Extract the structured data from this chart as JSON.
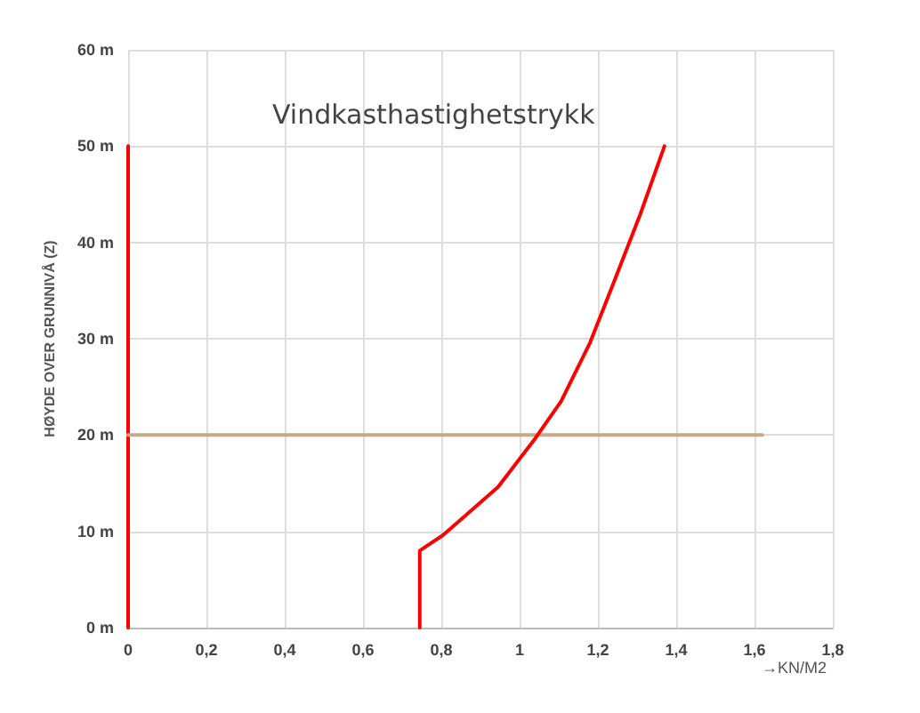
{
  "chart_data": {
    "type": "line",
    "title": "Vindkasthastighetstrykk",
    "xlabel": "→KN/M2",
    "ylabel": "HØYDE OVER GRUNNIVÅ (Z)",
    "series": [
      {
        "color": "#ff0000",
        "x": [
          0,
          0
        ],
        "values": [
          0,
          50
        ]
      },
      {
        "color": "#c8a88a",
        "x": [
          0,
          1.62
        ],
        "values": [
          20,
          20
        ]
      },
      {
        "color": "#ff0000",
        "x": [
          0.745,
          0.745,
          0.804,
          0.945,
          1.039,
          1.106,
          1.18,
          1.24,
          1.308,
          1.37
        ],
        "values": [
          0,
          8,
          9.6,
          14.6,
          19.6,
          23.5,
          29.6,
          35.8,
          42.9,
          50
        ]
      }
    ],
    "xlim": [
      0,
      1.8
    ],
    "xticks": [
      0,
      {
        "value": 0.2,
        "label": "0,2"
      },
      {
        "value": 0.4,
        "label": "0,4"
      },
      {
        "value": 0.6,
        "label": "0,6"
      },
      {
        "value": 0.8,
        "label": "0,8"
      },
      1,
      {
        "value": 1.2,
        "label": "1,2"
      },
      {
        "value": 1.4,
        "label": "1,4"
      },
      {
        "value": 1.6,
        "label": "1,6"
      },
      {
        "value": 1.8,
        "label": "1,8"
      }
    ],
    "ylim": [
      0,
      60
    ],
    "yticks": [
      {
        "value": 0,
        "label": "0 m"
      },
      {
        "value": 10,
        "label": "10 m"
      },
      {
        "value": 20,
        "label": "20 m"
      },
      {
        "value": 30,
        "label": "30 m"
      },
      {
        "value": 40,
        "label": "40 m"
      },
      {
        "value": 50,
        "label": "50 m"
      },
      {
        "value": 60,
        "label": "60 m"
      }
    ],
    "grid": true,
    "marker": "none",
    "line_style": "solid"
  }
}
